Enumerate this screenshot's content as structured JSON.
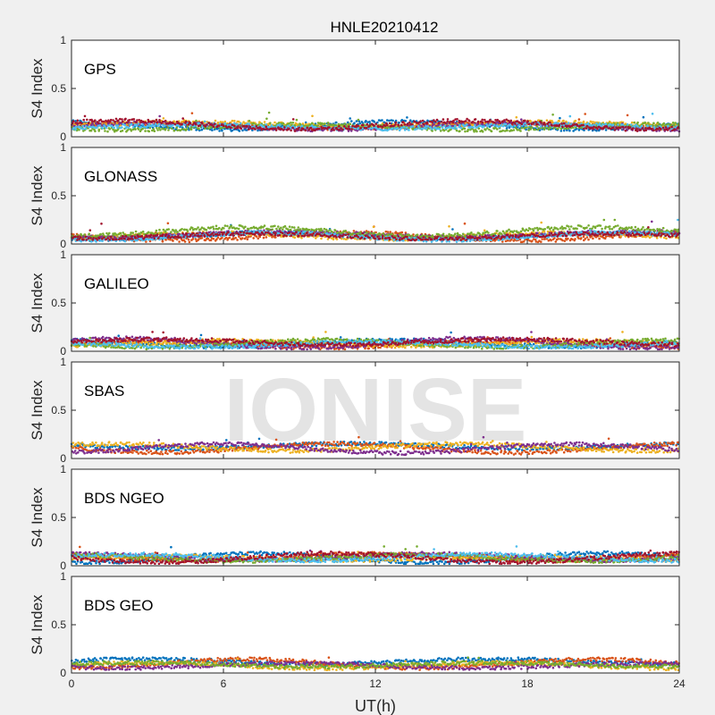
{
  "figure": {
    "title": "HNLE20210412",
    "xlabel": "UT(h)",
    "watermark": "IONISE"
  },
  "colors": {
    "series": [
      "#0072BD",
      "#D95319",
      "#EDB120",
      "#7E2F8E",
      "#77AC30",
      "#4DBEEE",
      "#A2142F"
    ],
    "axes": "#262626",
    "background": "#f0f0f0",
    "panel": "#ffffff",
    "watermark": "#e4e4e4"
  },
  "chart_data": [
    {
      "type": "scatter",
      "system": "GPS",
      "ylabel": "S4 Index",
      "xlim": [
        0,
        24
      ],
      "ylim": [
        0,
        1
      ],
      "xticks": [
        0,
        6,
        12,
        18,
        24
      ],
      "yticks": [
        0,
        0.5,
        1
      ],
      "typical_s4": [
        0.07,
        0.15
      ],
      "peak_s4": 0.25,
      "series_count": 7
    },
    {
      "type": "scatter",
      "system": "GLONASS",
      "ylabel": "S4 Index",
      "xlim": [
        0,
        24
      ],
      "ylim": [
        0,
        1
      ],
      "xticks": [
        0,
        6,
        12,
        18,
        24
      ],
      "yticks": [
        0,
        0.5,
        1
      ],
      "typical_s4": [
        0.05,
        0.15
      ],
      "peak_s4": 0.25,
      "series_count": 7
    },
    {
      "type": "scatter",
      "system": "GALILEO",
      "ylabel": "S4 Index",
      "xlim": [
        0,
        24
      ],
      "ylim": [
        0,
        1
      ],
      "xticks": [
        0,
        6,
        12,
        18,
        24
      ],
      "yticks": [
        0,
        0.5,
        1
      ],
      "typical_s4": [
        0.05,
        0.12
      ],
      "peak_s4": 0.2,
      "series_count": 7
    },
    {
      "type": "scatter",
      "system": "SBAS",
      "ylabel": "S4 Index",
      "xlim": [
        0,
        24
      ],
      "ylim": [
        0,
        1
      ],
      "xticks": [
        0,
        6,
        12,
        18,
        24
      ],
      "yticks": [
        0,
        0.5,
        1
      ],
      "typical_s4": [
        0.08,
        0.15
      ],
      "peak_s4": 0.22,
      "series_count": 4
    },
    {
      "type": "scatter",
      "system": "BDS NGEO",
      "ylabel": "S4 Index",
      "xlim": [
        0,
        24
      ],
      "ylim": [
        0,
        1
      ],
      "xticks": [
        0,
        6,
        12,
        18,
        24
      ],
      "yticks": [
        0,
        0.5,
        1
      ],
      "typical_s4": [
        0.05,
        0.12
      ],
      "peak_s4": 0.2,
      "series_count": 7
    },
    {
      "type": "scatter",
      "system": "BDS GEO",
      "ylabel": "S4 Index",
      "xlim": [
        0,
        24
      ],
      "ylim": [
        0,
        1
      ],
      "xticks": [
        0,
        6,
        12,
        18,
        24
      ],
      "yticks": [
        0,
        0.5,
        1
      ],
      "typical_s4": [
        0.06,
        0.14
      ],
      "peak_s4": 0.16,
      "series_count": 5
    }
  ]
}
